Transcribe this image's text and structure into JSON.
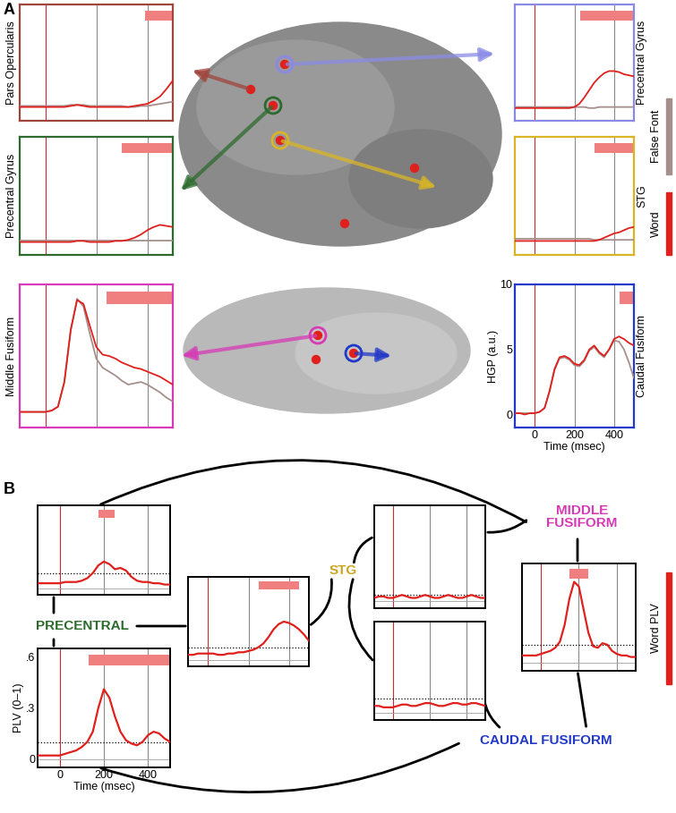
{
  "chart_data": [
    {
      "type": "line",
      "title": "Pars Opercularis",
      "color": "#a0453c",
      "x": [
        -100,
        -75,
        -50,
        -25,
        0,
        25,
        50,
        75,
        100,
        125,
        150,
        175,
        200,
        225,
        250,
        275,
        300,
        325,
        350,
        375,
        400,
        425,
        450,
        475,
        500
      ],
      "series": [
        {
          "name": "Word",
          "color": "#e0201c",
          "values": [
            0.3,
            0.3,
            0.3,
            0.3,
            0.3,
            0.3,
            0.3,
            0.3,
            0.4,
            0.5,
            0.4,
            0.3,
            0.3,
            0.3,
            0.3,
            0.3,
            0.3,
            0.3,
            0.4,
            0.5,
            0.6,
            0.9,
            1.3,
            2.0,
            2.8
          ]
        },
        {
          "name": "False Font",
          "color": "#a58f8c",
          "values": [
            0.4,
            0.4,
            0.4,
            0.4,
            0.4,
            0.4,
            0.4,
            0.4,
            0.5,
            0.5,
            0.5,
            0.4,
            0.4,
            0.4,
            0.4,
            0.4,
            0.4,
            0.3,
            0.3,
            0.4,
            0.4,
            0.5,
            0.6,
            0.7,
            0.8
          ]
        }
      ],
      "xlim": [
        -100,
        500
      ],
      "xticks": [
        0,
        200,
        400
      ],
      "ylim": [
        -1,
        10
      ],
      "yticks": [
        0,
        5,
        10
      ],
      "significance": [
        390,
        500
      ],
      "tick_labels": false
    },
    {
      "type": "line",
      "title": "Precentral Gyrus",
      "color": "#2d6a2d",
      "x": [
        -100,
        -75,
        -50,
        -25,
        0,
        25,
        50,
        75,
        100,
        125,
        150,
        175,
        200,
        225,
        250,
        275,
        300,
        325,
        350,
        375,
        400,
        425,
        450,
        475,
        500
      ],
      "series": [
        {
          "name": "Word",
          "color": "#e0201c",
          "values": [
            0.2,
            0.2,
            0.2,
            0.2,
            0.2,
            0.2,
            0.2,
            0.2,
            0.2,
            0.3,
            0.3,
            0.2,
            0.2,
            0.2,
            0.2,
            0.3,
            0.3,
            0.4,
            0.6,
            0.9,
            1.3,
            1.6,
            1.8,
            1.7,
            1.6
          ]
        },
        {
          "name": "False Font",
          "color": "#a58f8c",
          "values": [
            0.3,
            0.3,
            0.3,
            0.3,
            0.3,
            0.3,
            0.3,
            0.3,
            0.3,
            0.3,
            0.3,
            0.3,
            0.3,
            0.3,
            0.3,
            0.3,
            0.3,
            0.3,
            0.3,
            0.3,
            0.3,
            0.3,
            0.3,
            0.3,
            0.3
          ]
        }
      ],
      "xlim": [
        -100,
        500
      ],
      "xticks": [
        0,
        200,
        400
      ],
      "ylim": [
        -1,
        10
      ],
      "yticks": [
        0,
        5,
        10
      ],
      "significance": [
        300,
        500
      ],
      "tick_labels": false
    },
    {
      "type": "line",
      "title": "Middle Fusiform",
      "color": "#d63ab5",
      "x": [
        -100,
        -75,
        -50,
        -25,
        0,
        25,
        50,
        75,
        100,
        125,
        150,
        175,
        200,
        225,
        250,
        275,
        300,
        325,
        350,
        375,
        400,
        425,
        450,
        475,
        500
      ],
      "series": [
        {
          "name": "Word",
          "color": "#e0201c",
          "values": [
            0.2,
            0.2,
            0.2,
            0.2,
            0.2,
            0.3,
            0.6,
            2.5,
            6.5,
            8.8,
            8.5,
            6.8,
            5.2,
            4.6,
            4.5,
            4.3,
            4.0,
            3.8,
            3.6,
            3.5,
            3.3,
            3.1,
            2.9,
            2.6,
            2.3
          ]
        },
        {
          "name": "False Font",
          "color": "#a58f8c",
          "values": [
            0.2,
            0.2,
            0.2,
            0.2,
            0.2,
            0.3,
            0.6,
            2.5,
            6.5,
            8.9,
            8.3,
            6.2,
            4.3,
            3.6,
            3.3,
            3.0,
            2.6,
            2.3,
            2.4,
            2.5,
            2.3,
            2.0,
            1.7,
            1.3,
            1.0
          ]
        }
      ],
      "xlim": [
        -100,
        500
      ],
      "xticks": [
        0,
        200,
        400
      ],
      "ylim": [
        -1,
        10
      ],
      "yticks": [
        0,
        5,
        10
      ],
      "significance": [
        240,
        500
      ],
      "tick_labels": false
    },
    {
      "type": "line",
      "title": "Precentral Gyrus",
      "color": "#8a8ae6",
      "x": [
        -100,
        -75,
        -50,
        -25,
        0,
        25,
        50,
        75,
        100,
        125,
        150,
        175,
        200,
        225,
        250,
        275,
        300,
        325,
        350,
        375,
        400,
        425,
        450,
        475,
        500
      ],
      "series": [
        {
          "name": "Word",
          "color": "#e0201c",
          "values": [
            0.2,
            0.2,
            0.2,
            0.2,
            0.2,
            0.2,
            0.2,
            0.2,
            0.2,
            0.2,
            0.2,
            0.2,
            0.3,
            0.6,
            1.2,
            1.9,
            2.6,
            3.1,
            3.5,
            3.7,
            3.7,
            3.6,
            3.4,
            3.3,
            3.2
          ]
        },
        {
          "name": "False Font",
          "color": "#a58f8c",
          "values": [
            0.3,
            0.3,
            0.3,
            0.3,
            0.3,
            0.3,
            0.3,
            0.3,
            0.3,
            0.3,
            0.3,
            0.3,
            0.3,
            0.3,
            0.3,
            0.2,
            0.2,
            0.3,
            0.3,
            0.3,
            0.3,
            0.3,
            0.3,
            0.3,
            0.3
          ]
        }
      ],
      "xlim": [
        -100,
        500
      ],
      "xticks": [
        0,
        200,
        400
      ],
      "ylim": [
        -1,
        10
      ],
      "yticks": [
        0,
        5,
        10
      ],
      "significance": [
        230,
        500
      ],
      "tick_labels": false
    },
    {
      "type": "line",
      "title": "STG",
      "color": "#d9b526",
      "x": [
        -100,
        -75,
        -50,
        -25,
        0,
        25,
        50,
        75,
        100,
        125,
        150,
        175,
        200,
        225,
        250,
        275,
        300,
        325,
        350,
        375,
        400,
        425,
        450,
        475,
        500
      ],
      "series": [
        {
          "name": "Word",
          "color": "#e0201c",
          "values": [
            0.3,
            0.3,
            0.3,
            0.3,
            0.3,
            0.3,
            0.3,
            0.3,
            0.3,
            0.3,
            0.3,
            0.3,
            0.3,
            0.3,
            0.3,
            0.3,
            0.3,
            0.4,
            0.6,
            0.8,
            1.0,
            1.1,
            1.3,
            1.5,
            1.6
          ]
        },
        {
          "name": "False Font",
          "color": "#a58f8c",
          "values": [
            0.5,
            0.5,
            0.5,
            0.5,
            0.5,
            0.5,
            0.5,
            0.5,
            0.5,
            0.5,
            0.5,
            0.5,
            0.5,
            0.5,
            0.5,
            0.5,
            0.4,
            0.4,
            0.4,
            0.4,
            0.4,
            0.4,
            0.4,
            0.4,
            0.4
          ]
        }
      ],
      "xlim": [
        -100,
        500
      ],
      "xticks": [
        0,
        200,
        400
      ],
      "ylim": [
        -1,
        10
      ],
      "yticks": [
        0,
        5,
        10
      ],
      "significance": [
        300,
        500
      ],
      "tick_labels": false
    },
    {
      "type": "line",
      "title": "Caudal Fusiform",
      "color": "#2238c8",
      "xlabel": "Time (msec)",
      "ylabel": "HGP (a.u.)",
      "x": [
        -100,
        -75,
        -50,
        -25,
        0,
        25,
        50,
        75,
        100,
        125,
        150,
        175,
        200,
        225,
        250,
        275,
        300,
        325,
        350,
        375,
        400,
        425,
        450,
        475,
        500
      ],
      "series": [
        {
          "name": "Word",
          "color": "#e0201c",
          "values": [
            0.1,
            0.1,
            0.0,
            0.1,
            0.1,
            0.2,
            0.5,
            1.8,
            3.5,
            4.4,
            4.5,
            4.3,
            3.9,
            3.8,
            4.2,
            5.0,
            5.3,
            4.8,
            4.5,
            5.0,
            5.8,
            6.0,
            5.8,
            5.5,
            5.3
          ]
        },
        {
          "name": "False Font",
          "color": "#a58f8c",
          "values": [
            0.1,
            0.1,
            0.1,
            0.1,
            0.1,
            0.2,
            0.5,
            1.8,
            3.4,
            4.3,
            4.4,
            4.2,
            3.8,
            3.7,
            4.1,
            4.9,
            5.2,
            4.7,
            4.4,
            5.0,
            5.7,
            5.6,
            5.0,
            4.0,
            2.8
          ]
        }
      ],
      "xlim": [
        -100,
        500
      ],
      "xticks": [
        0,
        200,
        400
      ],
      "ylim": [
        -1,
        10
      ],
      "yticks": [
        0,
        5,
        10
      ],
      "significance": [
        430,
        500
      ],
      "tick_labels": true
    },
    {
      "type": "line",
      "x": [
        -100,
        -75,
        -50,
        -25,
        0,
        25,
        50,
        75,
        100,
        125,
        150,
        175,
        200,
        225,
        250,
        275,
        300,
        325,
        350,
        375,
        400,
        425,
        450,
        475,
        500
      ],
      "series": [
        {
          "name": "Word PLV",
          "color": "#e0201c",
          "values": [
            0.04,
            0.04,
            0.04,
            0.04,
            0.04,
            0.05,
            0.05,
            0.05,
            0.06,
            0.08,
            0.12,
            0.18,
            0.21,
            0.19,
            0.15,
            0.16,
            0.14,
            0.09,
            0.06,
            0.05,
            0.05,
            0.04,
            0.04,
            0.03,
            0.03
          ]
        }
      ],
      "xlim": [
        -100,
        500
      ],
      "xticks": [
        0,
        200,
        400
      ],
      "ylim": [
        -0.05,
        0.65
      ],
      "yticks": [
        0,
        {
          "value": 0.3,
          "label": ".3"
        },
        {
          "value": 0.6,
          "label": ".6"
        }
      ],
      "threshold": 0.12,
      "significance": [
        175,
        250
      ],
      "tick_labels": false
    },
    {
      "type": "line",
      "xlabel": "Time (msec)",
      "ylabel": "PLV (0–1)",
      "x": [
        -100,
        -75,
        -50,
        -25,
        0,
        25,
        50,
        75,
        100,
        125,
        150,
        175,
        200,
        225,
        250,
        275,
        300,
        325,
        350,
        375,
        400,
        425,
        450,
        475,
        500
      ],
      "series": [
        {
          "name": "Word PLV",
          "color": "#e0201c",
          "values": [
            0.02,
            0.02,
            0.02,
            0.02,
            0.02,
            0.03,
            0.04,
            0.05,
            0.07,
            0.1,
            0.16,
            0.3,
            0.41,
            0.36,
            0.25,
            0.16,
            0.11,
            0.09,
            0.08,
            0.1,
            0.14,
            0.16,
            0.15,
            0.12,
            0.1
          ]
        }
      ],
      "xlim": [
        -100,
        500
      ],
      "xticks": [
        0,
        200,
        400
      ],
      "ylim": [
        -0.05,
        0.65
      ],
      "yticks": [
        0,
        {
          "value": 0.3,
          "label": ".3"
        },
        {
          "value": 0.6,
          "label": ".6"
        }
      ],
      "threshold": 0.1,
      "significance": [
        130,
        500
      ],
      "tick_labels": true
    },
    {
      "type": "line",
      "x": [
        -100,
        -75,
        -50,
        -25,
        0,
        25,
        50,
        75,
        100,
        125,
        150,
        175,
        200,
        225,
        250,
        275,
        300,
        325,
        350,
        375,
        400,
        425,
        450,
        475,
        500
      ],
      "series": [
        {
          "name": "Word PLV",
          "color": "#e0201c",
          "values": [
            0.04,
            0.04,
            0.05,
            0.05,
            0.05,
            0.05,
            0.04,
            0.04,
            0.05,
            0.05,
            0.06,
            0.06,
            0.07,
            0.08,
            0.1,
            0.13,
            0.18,
            0.24,
            0.28,
            0.3,
            0.29,
            0.27,
            0.24,
            0.2,
            0.15
          ]
        }
      ],
      "xlim": [
        -100,
        500
      ],
      "xticks": [
        0,
        200,
        400
      ],
      "ylim": [
        -0.05,
        0.65
      ],
      "yticks": [
        0,
        {
          "value": 0.3,
          "label": ".3"
        },
        {
          "value": 0.6,
          "label": ".6"
        }
      ],
      "threshold": 0.1,
      "significance": [
        250,
        450
      ],
      "tick_labels": false
    },
    {
      "type": "line",
      "x": [
        -100,
        -75,
        -50,
        -25,
        0,
        25,
        50,
        75,
        100,
        125,
        150,
        175,
        200,
        225,
        250,
        275,
        300,
        325,
        350,
        375,
        400,
        425,
        450,
        475,
        500
      ],
      "series": [
        {
          "name": "Word PLV",
          "color": "#e0201c",
          "values": [
            0.02,
            0.03,
            0.03,
            0.02,
            0.02,
            0.03,
            0.04,
            0.03,
            0.02,
            0.02,
            0.03,
            0.04,
            0.03,
            0.02,
            0.02,
            0.03,
            0.04,
            0.03,
            0.02,
            0.02,
            0.03,
            0.04,
            0.03,
            0.02,
            0.02
          ]
        }
      ],
      "xlim": [
        -100,
        500
      ],
      "xticks": [
        0,
        200,
        400
      ],
      "ylim": [
        -0.05,
        0.65
      ],
      "yticks": [
        0,
        {
          "value": 0.3,
          "label": ".3"
        },
        {
          "value": 0.6,
          "label": ".6"
        }
      ],
      "threshold": 0.04,
      "significance": null,
      "tick_labels": false
    },
    {
      "type": "line",
      "x": [
        -100,
        -75,
        -50,
        -25,
        0,
        25,
        50,
        75,
        100,
        125,
        150,
        175,
        200,
        225,
        250,
        275,
        300,
        325,
        350,
        375,
        400,
        425,
        450,
        475,
        500
      ],
      "series": [
        {
          "name": "Word PLV",
          "color": "#e0201c",
          "values": [
            0.05,
            0.05,
            0.04,
            0.04,
            0.04,
            0.05,
            0.06,
            0.06,
            0.05,
            0.05,
            0.06,
            0.07,
            0.07,
            0.06,
            0.05,
            0.05,
            0.06,
            0.07,
            0.07,
            0.06,
            0.06,
            0.07,
            0.07,
            0.06,
            0.05
          ]
        }
      ],
      "xlim": [
        -100,
        500
      ],
      "xticks": [
        0,
        200,
        400
      ],
      "ylim": [
        -0.05,
        0.65
      ],
      "yticks": [
        0,
        {
          "value": 0.3,
          "label": ".3"
        },
        {
          "value": 0.6,
          "label": ".6"
        }
      ],
      "threshold": 0.1,
      "significance": null,
      "tick_labels": false
    },
    {
      "type": "line",
      "x": [
        -100,
        -75,
        -50,
        -25,
        0,
        25,
        50,
        75,
        100,
        125,
        150,
        175,
        200,
        225,
        250,
        275,
        300,
        325,
        350,
        375,
        400,
        425,
        450,
        475,
        500
      ],
      "series": [
        {
          "name": "Word PLV",
          "color": "#e0201c",
          "values": [
            0.05,
            0.05,
            0.05,
            0.05,
            0.06,
            0.07,
            0.08,
            0.1,
            0.14,
            0.25,
            0.42,
            0.53,
            0.5,
            0.35,
            0.2,
            0.11,
            0.1,
            0.13,
            0.12,
            0.08,
            0.06,
            0.05,
            0.05,
            0.04,
            0.04
          ]
        }
      ],
      "xlim": [
        -100,
        500
      ],
      "xticks": [
        0,
        200,
        400
      ],
      "ylim": [
        -0.05,
        0.65
      ],
      "yticks": [
        0,
        {
          "value": 0.3,
          "label": ".3"
        },
        {
          "value": 0.6,
          "label": ".6"
        }
      ],
      "threshold": 0.12,
      "significance": [
        150,
        250
      ],
      "tick_labels": false
    }
  ],
  "panel_labels": [
    "A",
    "B"
  ],
  "nodes": [
    {
      "label": "PRECENTRAL",
      "color": "#2d6a2d"
    },
    {
      "label": "STG",
      "color": "#c9a520"
    },
    {
      "label": "MIDDLE\nFUSIFORM",
      "color": "#d63ab5"
    },
    {
      "label": "CAUDAL FUSIFORM",
      "color": "#2238c8"
    }
  ]
}
